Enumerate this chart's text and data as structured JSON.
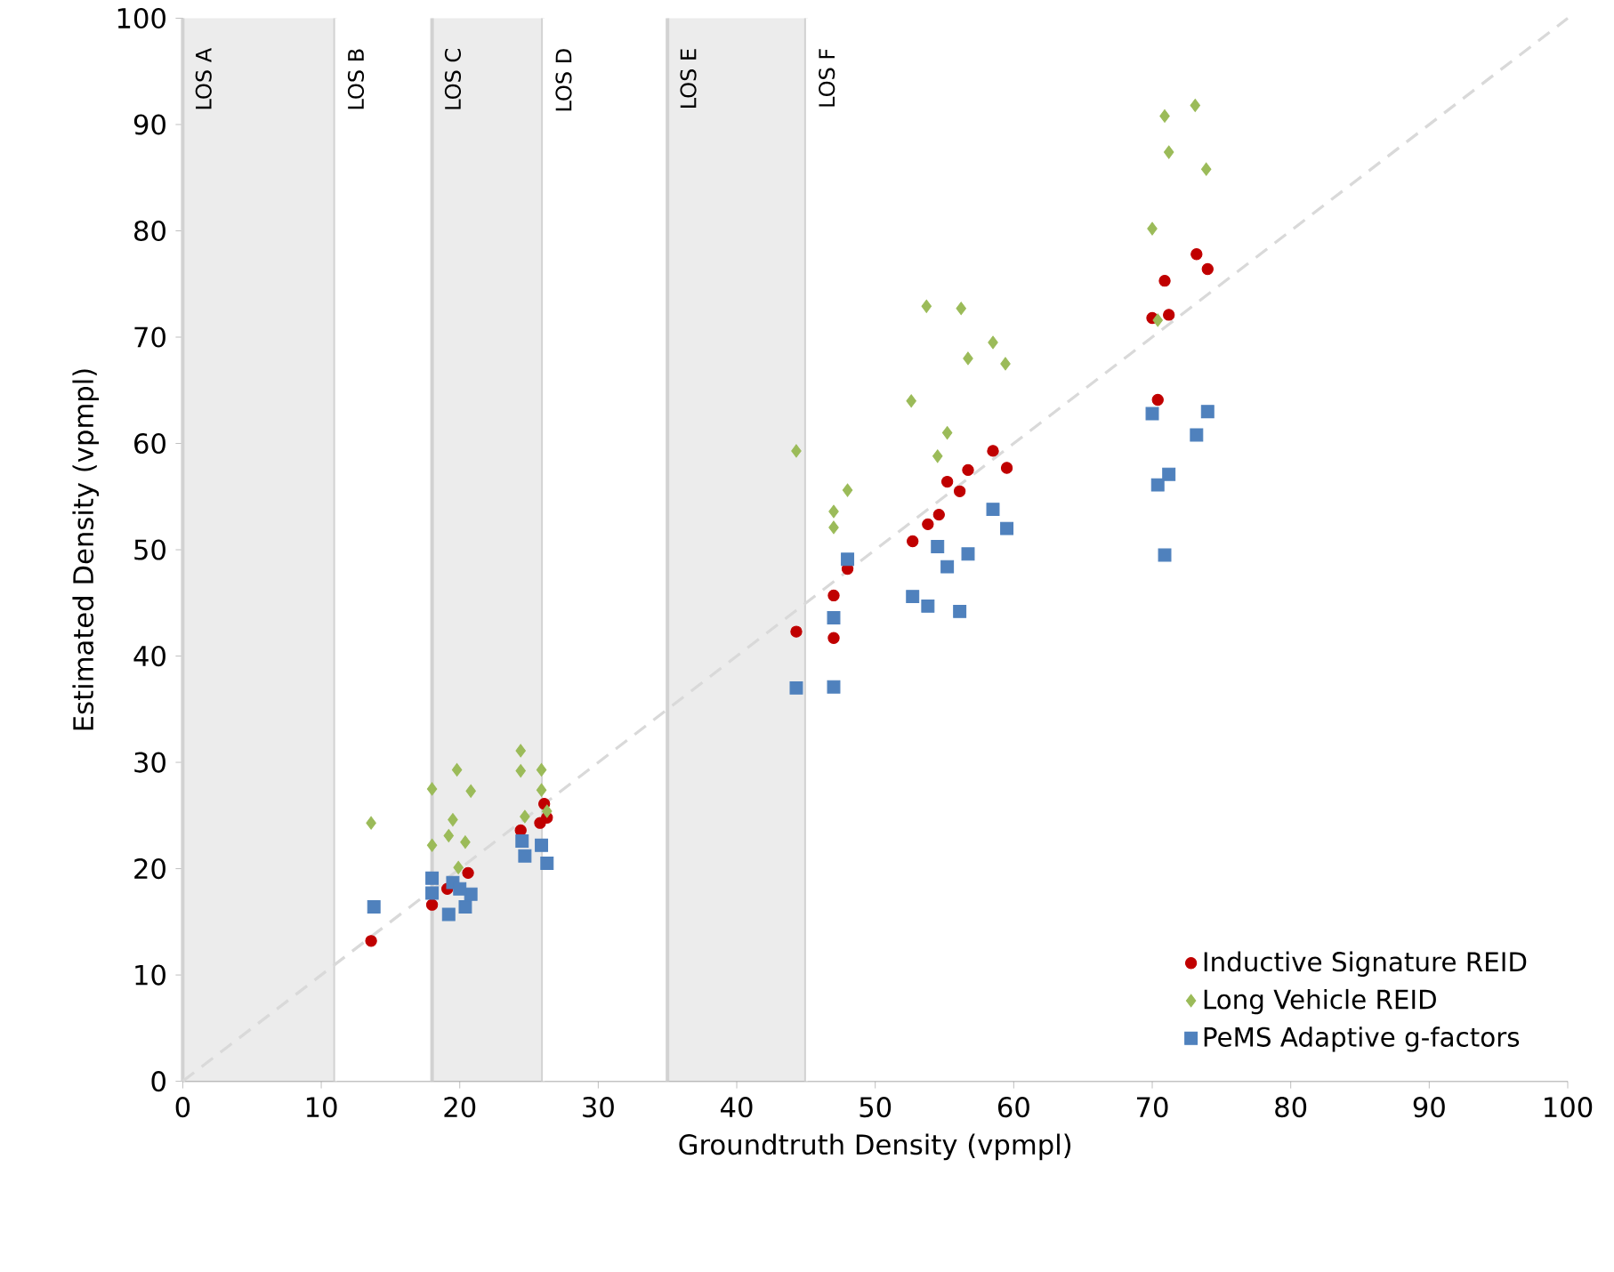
{
  "chart_data": {
    "type": "scatter",
    "xlabel": "Groundtruth Density (vpmpl)",
    "ylabel": "Estimated Density (vpmpl)",
    "xlim": [
      0,
      100
    ],
    "ylim": [
      0,
      100
    ],
    "xticks": [
      0,
      10,
      20,
      30,
      40,
      50,
      60,
      70,
      80,
      90,
      100
    ],
    "yticks": [
      0,
      10,
      20,
      30,
      40,
      50,
      60,
      70,
      80,
      90,
      100
    ],
    "grid": false,
    "legend": "bottom right",
    "bands": [
      {
        "axis": "x",
        "from": 0,
        "to": 11,
        "label": "LOS A",
        "color": "#ececec"
      },
      {
        "axis": "x",
        "from": 11,
        "to": 18,
        "label": "LOS B",
        "color": "#ffffff"
      },
      {
        "axis": "x",
        "from": 18,
        "to": 26,
        "label": "LOS C",
        "color": "#ececec"
      },
      {
        "axis": "x",
        "from": 26,
        "to": 35,
        "label": "LOS D",
        "color": "#ffffff"
      },
      {
        "axis": "x",
        "from": 35,
        "to": 45,
        "label": "LOS E",
        "color": "#ececec"
      },
      {
        "axis": "x",
        "from": 45,
        "to": 100,
        "label": "LOS F",
        "color": "#ffffff"
      }
    ],
    "series": [
      {
        "type": "line",
        "color": "#d9d9d9",
        "line_style": "dashed",
        "marker": "none",
        "x": [
          0,
          100
        ],
        "values": [
          0,
          100
        ]
      },
      {
        "name": "Inductive Signature REID",
        "color": "#c00000",
        "marker": "circle",
        "x": [
          13.6,
          18.0,
          20.6,
          19.1,
          24.4,
          25.8,
          26.1,
          26.3,
          47.0,
          47.0,
          44.3,
          48.0,
          52.7,
          53.8,
          54.6,
          55.2,
          56.1,
          56.7,
          58.5,
          59.5,
          73.2,
          74.0,
          70.9,
          70.0,
          71.2,
          70.4
        ],
        "values": [
          13.2,
          16.6,
          19.6,
          18.1,
          23.6,
          24.3,
          26.1,
          24.8,
          41.7,
          45.7,
          42.3,
          48.2,
          50.8,
          52.4,
          53.3,
          56.4,
          55.5,
          57.5,
          59.3,
          57.7,
          77.8,
          76.4,
          75.3,
          71.8,
          72.1,
          64.1
        ]
      },
      {
        "name": "Long Vehicle REID",
        "color": "#9bbb59",
        "marker": "diamond",
        "x": [
          13.6,
          18.0,
          19.8,
          20.8,
          24.4,
          24.4,
          25.9,
          25.9,
          19.5,
          19.2,
          20.4,
          18.0,
          24.7,
          26.3,
          19.9,
          44.3,
          48.0,
          47.0,
          47.0,
          54.5,
          55.2,
          52.6,
          53.7,
          56.2,
          56.7,
          58.5,
          59.4,
          70.9,
          73.1,
          71.2,
          73.9,
          70.0,
          70.4
        ],
        "values": [
          24.3,
          27.5,
          29.3,
          27.3,
          31.1,
          29.2,
          29.3,
          27.4,
          24.6,
          23.1,
          22.5,
          22.2,
          24.9,
          25.4,
          20.1,
          59.3,
          55.6,
          53.6,
          52.1,
          58.8,
          61.0,
          64.0,
          72.9,
          72.7,
          68.0,
          69.5,
          67.5,
          90.8,
          91.8,
          87.4,
          85.8,
          80.2,
          71.6
        ]
      },
      {
        "name": "PeMS Adaptive g-factors",
        "color": "#4f81bd",
        "marker": "square",
        "x": [
          13.8,
          18.0,
          18.0,
          19.2,
          20.4,
          20.8,
          19.5,
          20.0,
          24.5,
          24.7,
          25.9,
          26.3,
          44.3,
          47.0,
          47.0,
          48.0,
          52.7,
          53.8,
          56.1,
          54.5,
          55.2,
          56.7,
          58.5,
          59.5,
          70.0,
          74.0,
          73.2,
          71.2,
          70.4,
          70.9
        ],
        "values": [
          16.4,
          19.1,
          17.7,
          15.7,
          16.4,
          17.6,
          18.7,
          18.1,
          22.6,
          21.2,
          22.2,
          20.5,
          37.0,
          37.1,
          43.6,
          49.1,
          45.6,
          44.7,
          44.2,
          50.3,
          48.4,
          49.6,
          53.8,
          52.0,
          62.8,
          63.0,
          60.8,
          57.1,
          56.1,
          49.5
        ]
      }
    ]
  }
}
